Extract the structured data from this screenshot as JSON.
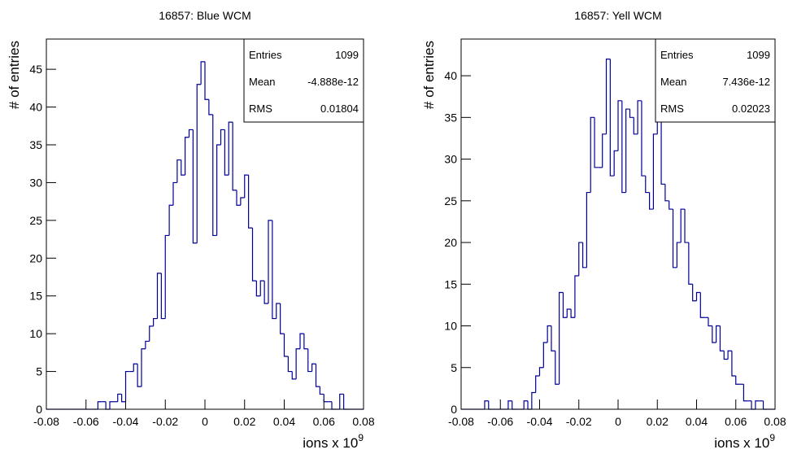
{
  "chart_data": [
    {
      "type": "histogram",
      "title": "16857: Blue WCM",
      "y_label": "# of entries",
      "x_label": "ions x 10",
      "x_label_sup": "9",
      "color": "#000099",
      "bins": [
        -0.08,
        -0.078,
        -0.076,
        -0.074,
        -0.072,
        -0.07,
        -0.068,
        -0.066,
        -0.064,
        -0.062,
        -0.06,
        -0.058,
        -0.056,
        -0.054,
        -0.052,
        -0.05,
        -0.048,
        -0.046,
        -0.044,
        -0.042,
        -0.04,
        -0.038,
        -0.036,
        -0.034,
        -0.032,
        -0.03,
        -0.028,
        -0.026,
        -0.024,
        -0.022,
        -0.02,
        -0.018,
        -0.016,
        -0.014,
        -0.012,
        -0.01,
        -0.008,
        -0.006,
        -0.004,
        -0.002,
        0,
        0.002,
        0.004,
        0.006,
        0.008,
        0.01,
        0.012,
        0.014,
        0.016,
        0.018,
        0.02,
        0.022,
        0.024,
        0.026,
        0.028,
        0.03,
        0.032,
        0.034,
        0.036,
        0.038,
        0.04,
        0.042,
        0.044,
        0.046,
        0.048,
        0.05,
        0.052,
        0.054,
        0.056,
        0.058,
        0.06,
        0.062,
        0.064,
        0.066,
        0.068,
        0.07,
        0.072,
        0.074,
        0.076,
        0.078,
        0.08
      ],
      "counts": [
        0,
        0,
        0,
        0,
        0,
        0,
        0,
        0,
        0,
        0,
        0,
        0,
        0,
        1,
        1,
        0,
        1,
        1,
        2,
        1,
        5,
        5,
        6,
        3,
        8,
        9,
        11,
        12,
        18,
        12,
        23,
        27,
        30,
        33,
        31,
        36,
        37,
        22,
        43,
        46,
        41,
        39,
        23,
        35,
        37,
        31,
        38,
        29,
        27,
        28,
        31,
        24,
        17,
        15,
        17,
        14,
        25,
        12,
        14,
        10,
        7,
        5,
        4,
        8,
        10,
        8,
        5,
        6,
        3,
        2,
        1,
        1,
        0,
        0,
        2,
        0,
        0,
        0,
        0,
        0
      ],
      "xlim": [
        -0.08,
        0.08
      ],
      "ylim": [
        0,
        49
      ],
      "xticks": [
        -0.08,
        -0.06,
        -0.04,
        -0.02,
        0,
        0.02,
        0.04,
        0.06,
        0.08
      ],
      "yticks": [
        0,
        5,
        10,
        15,
        20,
        25,
        30,
        35,
        40,
        45
      ],
      "stats": [
        {
          "name": "Entries",
          "value": 1099
        },
        {
          "name": "Mean",
          "value": -4.888e-12
        },
        {
          "name": "RMS",
          "value": 0.01804
        }
      ]
    },
    {
      "type": "histogram",
      "title": "16857: Yell WCM",
      "y_label": "# of entries",
      "x_label": "ions x 10",
      "x_label_sup": "9",
      "color": "#000099",
      "bins": [
        -0.08,
        -0.078,
        -0.076,
        -0.074,
        -0.072,
        -0.07,
        -0.068,
        -0.066,
        -0.064,
        -0.062,
        -0.06,
        -0.058,
        -0.056,
        -0.054,
        -0.052,
        -0.05,
        -0.048,
        -0.046,
        -0.044,
        -0.042,
        -0.04,
        -0.038,
        -0.036,
        -0.034,
        -0.032,
        -0.03,
        -0.028,
        -0.026,
        -0.024,
        -0.022,
        -0.02,
        -0.018,
        -0.016,
        -0.014,
        -0.012,
        -0.01,
        -0.008,
        -0.006,
        -0.004,
        -0.002,
        0,
        0.002,
        0.004,
        0.006,
        0.008,
        0.01,
        0.012,
        0.014,
        0.016,
        0.018,
        0.02,
        0.022,
        0.024,
        0.026,
        0.028,
        0.03,
        0.032,
        0.034,
        0.036,
        0.038,
        0.04,
        0.042,
        0.044,
        0.046,
        0.048,
        0.05,
        0.052,
        0.054,
        0.056,
        0.058,
        0.06,
        0.062,
        0.064,
        0.066,
        0.068,
        0.07,
        0.072,
        0.074,
        0.076,
        0.078,
        0.08
      ],
      "counts": [
        0,
        0,
        0,
        0,
        0,
        0,
        1,
        0,
        0,
        0,
        0,
        0,
        1,
        0,
        0,
        0,
        1,
        0,
        2,
        4,
        5,
        8,
        10,
        7,
        3,
        14,
        11,
        12,
        11,
        16,
        20,
        17,
        26,
        35,
        29,
        29,
        33,
        42,
        28,
        31,
        37,
        26,
        36,
        35,
        33,
        37,
        28,
        26,
        24,
        33,
        36,
        27,
        25,
        24,
        17,
        20,
        24,
        20,
        15,
        13,
        14,
        11,
        11,
        10,
        8,
        10,
        7,
        6,
        7,
        4,
        3,
        3,
        1,
        1,
        0,
        1,
        1,
        0,
        0,
        0
      ],
      "xlim": [
        -0.08,
        0.08
      ],
      "ylim": [
        0,
        44.4
      ],
      "xticks": [
        -0.08,
        -0.06,
        -0.04,
        -0.02,
        0,
        0.02,
        0.04,
        0.06,
        0.08
      ],
      "yticks": [
        0,
        5,
        10,
        15,
        20,
        25,
        30,
        35,
        40
      ],
      "stats": [
        {
          "name": "Entries",
          "value": 1099
        },
        {
          "name": "Mean",
          "value": 7.436e-12
        },
        {
          "name": "RMS",
          "value": 0.02023
        }
      ]
    }
  ]
}
